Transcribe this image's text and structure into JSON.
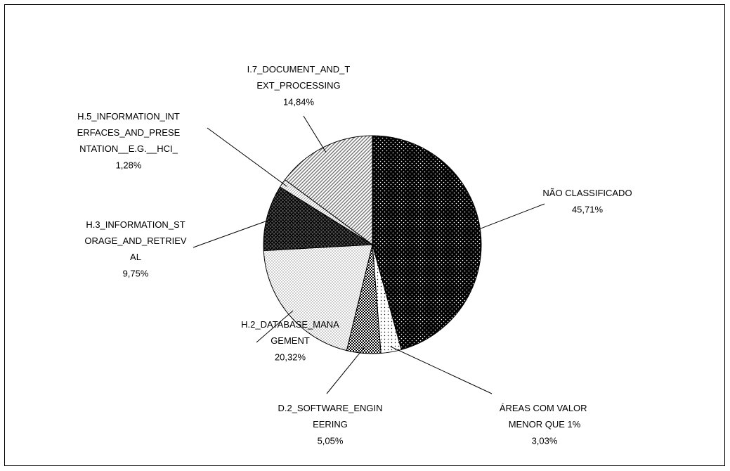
{
  "chart_data": {
    "type": "pie",
    "categories": [
      "NÃO CLASSIFICADO",
      "ÁREAS COM VALOR MENOR QUE 1%",
      "D.2_SOFTWARE_ENGINEERING",
      "H.2_DATABASE_MANAGEMENT",
      "H.3_INFORMATION_STORAGE_AND_RETRIEVAL",
      "H.5_INFORMATION_INTERFACES_AND_PRESENTATION__E.G.__HCI_",
      "I.7_DOCUMENT_AND_TEXT_PROCESSING"
    ],
    "values": [
      45.71,
      3.03,
      5.05,
      20.32,
      9.75,
      1.28,
      14.84
    ],
    "value_labels": [
      "45,71%",
      "3,03%",
      "5,05%",
      "20,32%",
      "9,75%",
      "1,28%",
      "14,84%"
    ]
  }
}
